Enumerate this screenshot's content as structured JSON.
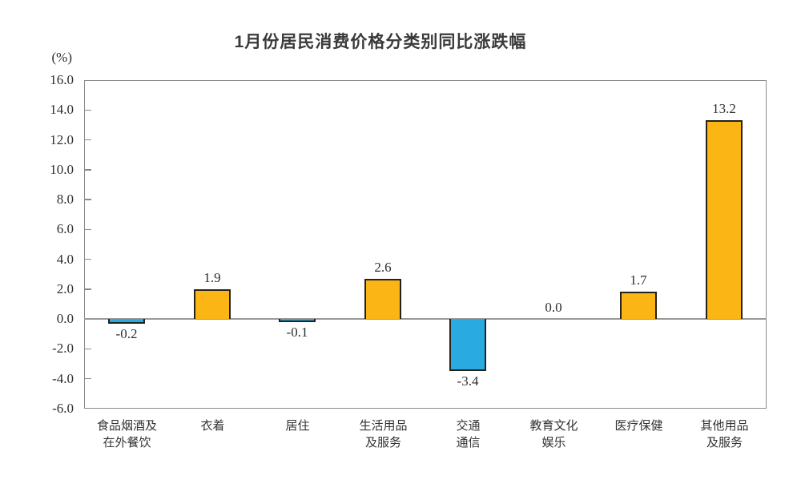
{
  "chart_data": {
    "type": "bar",
    "title": "1月份居民消费价格分类别同比涨跌幅",
    "unit_label": "(%)",
    "categories": [
      "食品烟酒及\n在外餐饮",
      "衣着",
      "居住",
      "生活用品\n及服务",
      "交通\n通信",
      "教育文化\n娱乐",
      "医疗保健",
      "其他用品\n及服务"
    ],
    "values": [
      -0.2,
      1.9,
      -0.1,
      2.6,
      -3.4,
      0.0,
      1.7,
      13.2
    ],
    "value_labels": [
      "-0.2",
      "1.9",
      "-0.1",
      "2.6",
      "-3.4",
      "0.0",
      "1.7",
      "13.2"
    ],
    "ylim": [
      -6.0,
      16.0
    ],
    "ytick_step": 2.0,
    "ytick_labels": [
      "16.0",
      "14.0",
      "12.0",
      "10.0",
      "8.0",
      "6.0",
      "4.0",
      "2.0",
      "0.0",
      "-2.0",
      "-4.0",
      "-6.0"
    ],
    "grid": false,
    "legend": null,
    "colors": {
      "positive_bar": "#FBB515",
      "negative_bar": "#29ABE2",
      "bar_border": "#26211a",
      "axis": "#8a8a8a",
      "zero_line": "#999999",
      "text": "#2e2e2e"
    }
  }
}
